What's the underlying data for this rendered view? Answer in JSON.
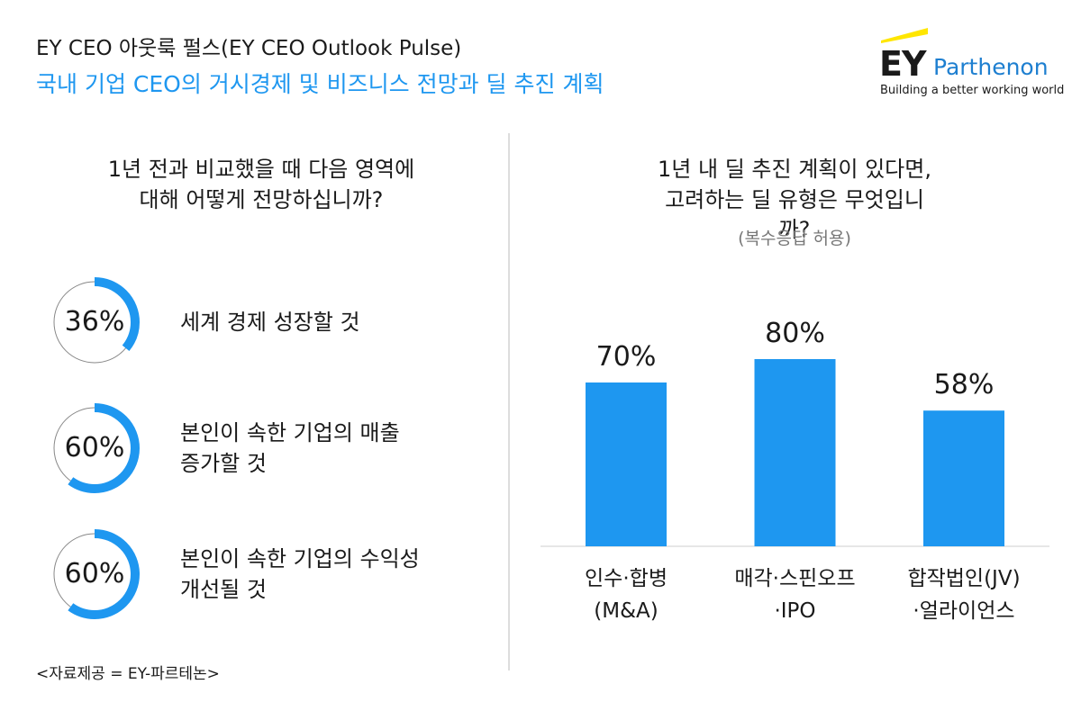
{
  "header": {
    "title": "EY CEO 아웃룩 펄스(EY CEO Outlook Pulse)",
    "subtitle": "국내 기업 CEO의 거시경제 및 비즈니스 전망과 딜 추진 계획"
  },
  "logo": {
    "mark": "EY",
    "name": "Parthenon",
    "tagline": "Building a better working world"
  },
  "chart_data": [
    {
      "type": "donut",
      "title": "1년 전과 비교했을 때 다음 영역에\n대해 어떻게 전망하십니까?",
      "categories": [
        "세계 경제 성장할 것",
        "본인이 속한 기업의 매출\n증가할 것",
        "본인이 속한 기업의 수익성\n개선될 것"
      ],
      "values": [
        36,
        60,
        60
      ],
      "value_labels": [
        "36%",
        "60%",
        "60%"
      ],
      "color": "#1e97f0"
    },
    {
      "type": "bar",
      "title": "1년 내 딜 추진 계획이 있다면,\n고려하는 딜 유형은 무엇입니까?",
      "subtitle": "(복수응답 허용)",
      "categories": [
        "인수·합병\n(M&A)",
        "매각·스핀오프\n·IPO",
        "합작법인(JV)\n·얼라이언스"
      ],
      "values": [
        70,
        80,
        58
      ],
      "value_labels": [
        "70%",
        "80%",
        "58%"
      ],
      "color": "#1e97f0"
    }
  ],
  "footer": {
    "source": "<자료제공 = EY-파르테논>"
  }
}
